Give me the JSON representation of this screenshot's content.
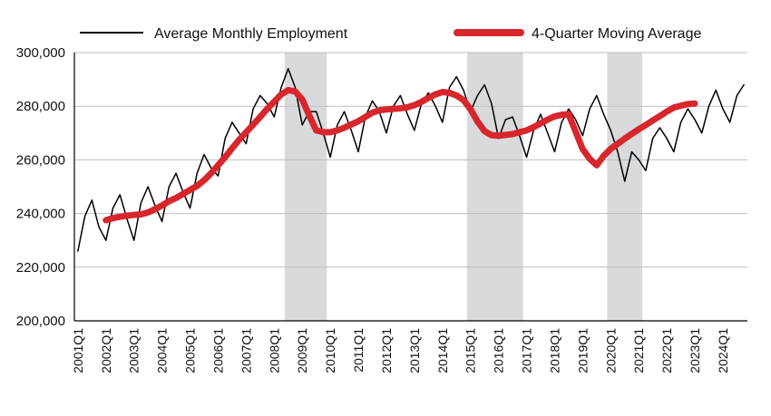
{
  "chart_data": {
    "type": "line",
    "ylim": [
      200000,
      300000
    ],
    "yticks": [
      "200,000",
      "220,000",
      "240,000",
      "260,000",
      "280,000",
      "300,000"
    ],
    "ytick_values": [
      200000,
      220000,
      240000,
      260000,
      280000,
      300000
    ],
    "grid": "horizontal",
    "legend_placement": "top",
    "xtick_labels": [
      "2001Q1",
      "2002Q1",
      "2003Q1",
      "2004Q1",
      "2005Q1",
      "2006Q1",
      "2007Q1",
      "2008Q1",
      "2009Q1",
      "2010Q1",
      "2011Q1",
      "2012Q1",
      "2013Q1",
      "2014Q1",
      "2015Q1",
      "2016Q1",
      "2017Q1",
      "2018Q1",
      "2019Q1",
      "2020Q1",
      "2021Q1",
      "2022Q1",
      "2023Q1",
      "2024Q1"
    ],
    "recession_bands": [
      {
        "start": "2008Q3",
        "end": "2009Q4"
      },
      {
        "start": "2015Q1",
        "end": "2016Q4"
      },
      {
        "start": "2020Q1",
        "end": "2021Q1"
      }
    ],
    "series": [
      {
        "name": "Average Monthly Employment",
        "color": "#000000",
        "start_quarter": "2001Q1",
        "values": [
          226000,
          239000,
          245000,
          235000,
          230000,
          242000,
          247000,
          238000,
          230000,
          244000,
          250000,
          243000,
          237000,
          250000,
          255000,
          248000,
          242000,
          255000,
          262000,
          257000,
          254000,
          268000,
          274000,
          270000,
          266000,
          279000,
          284000,
          281000,
          276000,
          287000,
          294000,
          287000,
          273000,
          278000,
          278000,
          270000,
          261000,
          273000,
          278000,
          271000,
          263000,
          276000,
          282000,
          278000,
          270000,
          280000,
          284000,
          277000,
          271000,
          281000,
          285000,
          280000,
          274000,
          287000,
          291000,
          286000,
          278000,
          284000,
          288000,
          281000,
          268000,
          275000,
          276000,
          269000,
          261000,
          271000,
          277000,
          270000,
          263000,
          274000,
          279000,
          275000,
          269000,
          279000,
          284000,
          277000,
          271000,
          263000,
          252000,
          263000,
          260000,
          256000,
          268000,
          272000,
          268000,
          263000,
          274000,
          279000,
          275000,
          270000,
          280000,
          286000,
          279000,
          274000,
          284000,
          288000
        ]
      },
      {
        "name": "4-Quarter Moving Average",
        "color": "#D7262C",
        "start_quarter": "2002Q1",
        "values": [
          237500,
          238300,
          238800,
          239200,
          239500,
          239700,
          240400,
          241600,
          243000,
          244600,
          245800,
          247300,
          248800,
          250300,
          252400,
          255000,
          258000,
          261000,
          264300,
          267500,
          270300,
          273100,
          276000,
          279000,
          281700,
          284400,
          286000,
          285500,
          282500,
          276500,
          271000,
          270300,
          270300,
          271000,
          272000,
          273200,
          274400,
          276000,
          277600,
          278500,
          278800,
          279000,
          279200,
          279600,
          280400,
          281600,
          283100,
          284400,
          285300,
          285000,
          284000,
          282300,
          278900,
          274300,
          270700,
          269200,
          269000,
          269300,
          269600,
          270300,
          271000,
          272200,
          273600,
          275000,
          276200,
          276800,
          277000,
          270500,
          264000,
          260400,
          258000,
          261500,
          264100,
          266000,
          267900,
          269700,
          271400,
          273000,
          274700,
          276300,
          278000,
          279500,
          280200,
          280800,
          281000
        ]
      }
    ]
  }
}
